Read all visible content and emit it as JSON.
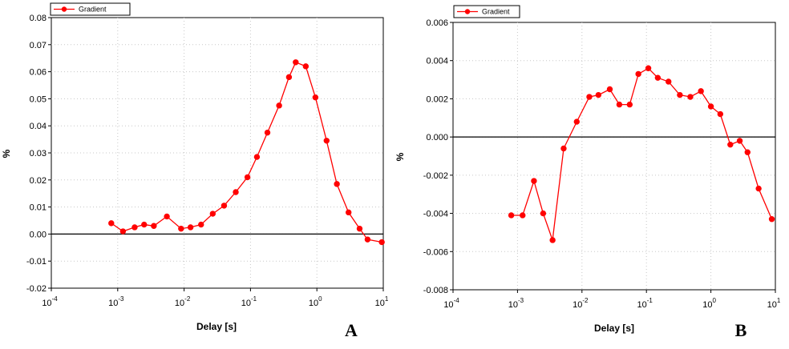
{
  "chart_data": [
    {
      "type": "line",
      "panel_label": "A",
      "xlabel": "Delay [s]",
      "ylabel": "%",
      "x_scale": "log",
      "xlim": [
        0.0001,
        10
      ],
      "ylim": [
        -0.02,
        0.08
      ],
      "x_ticks": [
        {
          "base": "10",
          "exp": "-4"
        },
        {
          "base": "10",
          "exp": "-3"
        },
        {
          "base": "10",
          "exp": "-2"
        },
        {
          "base": "10",
          "exp": "-1"
        },
        {
          "base": "10",
          "exp": "0"
        },
        {
          "base": "10",
          "exp": "1"
        }
      ],
      "y_ticks": [
        "-0.02",
        "-0.01",
        "0.00",
        "0.01",
        "0.02",
        "0.03",
        "0.04",
        "0.05",
        "0.06",
        "0.07",
        "0.08"
      ],
      "grid": true,
      "legend_position": "top-left",
      "color": "#ff0000",
      "series": [
        {
          "name": "Gradient",
          "x": [
            0.0008,
            0.0012,
            0.0018,
            0.0025,
            0.0035,
            0.0055,
            0.009,
            0.0125,
            0.018,
            0.027,
            0.04,
            0.06,
            0.09,
            0.125,
            0.18,
            0.27,
            0.38,
            0.48,
            0.68,
            0.95,
            1.4,
            2.0,
            3.0,
            4.4,
            5.8,
            9.5
          ],
          "y": [
            0.004,
            0.001,
            0.0025,
            0.0035,
            0.003,
            0.0065,
            0.002,
            0.0025,
            0.0035,
            0.0075,
            0.0105,
            0.0155,
            0.021,
            0.0285,
            0.0375,
            0.0475,
            0.058,
            0.0635,
            0.062,
            0.0505,
            0.0345,
            0.0185,
            0.008,
            0.002,
            -0.002,
            -0.003
          ]
        }
      ]
    },
    {
      "type": "line",
      "panel_label": "B",
      "xlabel": "Delay [s]",
      "ylabel": "%",
      "x_scale": "log",
      "xlim": [
        0.0001,
        10
      ],
      "ylim": [
        -0.008,
        0.006
      ],
      "x_ticks": [
        {
          "base": "10",
          "exp": "-4"
        },
        {
          "base": "10",
          "exp": "-3"
        },
        {
          "base": "10",
          "exp": "-2"
        },
        {
          "base": "10",
          "exp": "-1"
        },
        {
          "base": "10",
          "exp": "0"
        },
        {
          "base": "10",
          "exp": "1"
        }
      ],
      "y_ticks": [
        "-0.008",
        "-0.006",
        "-0.004",
        "-0.002",
        "0.000",
        "0.002",
        "0.004",
        "0.006"
      ],
      "grid": true,
      "legend_position": "top-left",
      "color": "#ff0000",
      "series": [
        {
          "name": "Gradient",
          "x": [
            0.0008,
            0.0012,
            0.0018,
            0.0025,
            0.0035,
            0.0052,
            0.0083,
            0.013,
            0.018,
            0.027,
            0.038,
            0.055,
            0.075,
            0.107,
            0.15,
            0.22,
            0.33,
            0.48,
            0.7,
            1.0,
            1.4,
            2.0,
            2.8,
            3.7,
            5.5,
            8.8
          ],
          "y": [
            -0.0041,
            -0.0041,
            -0.0023,
            -0.004,
            -0.0054,
            -0.0006,
            0.0008,
            0.0021,
            0.0022,
            0.0025,
            0.0017,
            0.0017,
            0.0033,
            0.0036,
            0.0031,
            0.0029,
            0.0022,
            0.0021,
            0.0024,
            0.0016,
            0.0012,
            -0.0004,
            -0.0002,
            -0.0008,
            -0.0027,
            -0.0043
          ]
        }
      ]
    }
  ]
}
